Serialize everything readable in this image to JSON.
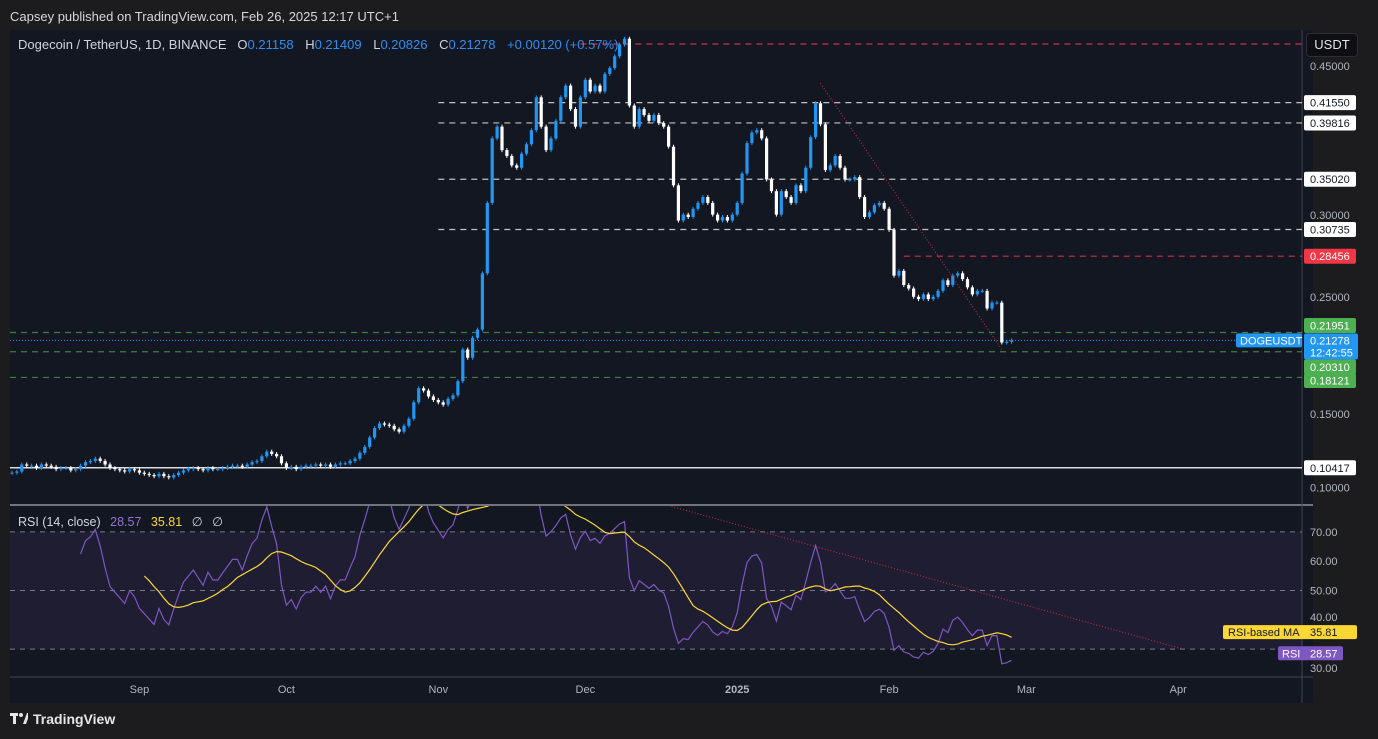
{
  "header": {
    "published": "Capsey published on TradingView.com, Feb 26, 2025 12:17 UTC+1"
  },
  "legend": {
    "symbol": "Dogecoin / TetherUS, 1D, BINANCE",
    "o_label": "O",
    "o": "0.21158",
    "h_label": "H",
    "h": "0.21409",
    "l_label": "L",
    "l": "0.20826",
    "c_label": "C",
    "c": "0.21278",
    "change": "+0.00120 (+0.57%)"
  },
  "currency": "USDT",
  "rsi_legend": {
    "name": "RSI (14, close)",
    "rsi": "28.57",
    "ma": "35.81",
    "v1": "∅",
    "v2": "∅"
  },
  "footer": {
    "logo": "TradingView"
  },
  "colors": {
    "up": "#2196f3",
    "down": "#ffffff",
    "rsi": "#7e57c2",
    "rsi_ma": "#fdd835",
    "resistance": "#f23645",
    "support": "#4caf50",
    "current": "#2196f3"
  },
  "chart_data": [
    {
      "type": "candlestick",
      "symbol": "DOGEUSDT",
      "interval": "1D",
      "start_date": "2024-08-06",
      "end_date": "2025-02-26",
      "closes": [
        0.1,
        0.101,
        0.107,
        0.106,
        0.106,
        0.104,
        0.107,
        0.106,
        0.105,
        0.103,
        0.104,
        0.104,
        0.102,
        0.103,
        0.106,
        0.109,
        0.11,
        0.112,
        0.11,
        0.107,
        0.104,
        0.103,
        0.102,
        0.101,
        0.103,
        0.102,
        0.1,
        0.099,
        0.098,
        0.097,
        0.099,
        0.097,
        0.096,
        0.098,
        0.1,
        0.102,
        0.103,
        0.104,
        0.103,
        0.102,
        0.104,
        0.103,
        0.103,
        0.104,
        0.105,
        0.106,
        0.106,
        0.105,
        0.107,
        0.109,
        0.11,
        0.114,
        0.118,
        0.116,
        0.114,
        0.108,
        0.104,
        0.105,
        0.103,
        0.105,
        0.106,
        0.106,
        0.107,
        0.106,
        0.107,
        0.105,
        0.107,
        0.108,
        0.108,
        0.11,
        0.112,
        0.117,
        0.122,
        0.13,
        0.138,
        0.142,
        0.141,
        0.14,
        0.137,
        0.135,
        0.14,
        0.146,
        0.16,
        0.172,
        0.17,
        0.165,
        0.162,
        0.16,
        0.158,
        0.163,
        0.166,
        0.178,
        0.205,
        0.198,
        0.215,
        0.222,
        0.27,
        0.33,
        0.385,
        0.395,
        0.375,
        0.37,
        0.362,
        0.36,
        0.372,
        0.38,
        0.392,
        0.42,
        0.395,
        0.375,
        0.385,
        0.4,
        0.42,
        0.43,
        0.41,
        0.395,
        0.42,
        0.435,
        0.425,
        0.43,
        0.425,
        0.44,
        0.445,
        0.455,
        0.465,
        0.47,
        0.413,
        0.395,
        0.41,
        0.405,
        0.4,
        0.405,
        0.398,
        0.395,
        0.378,
        0.345,
        0.315,
        0.32,
        0.318,
        0.325,
        0.33,
        0.335,
        0.33,
        0.32,
        0.315,
        0.318,
        0.315,
        0.32,
        0.33,
        0.355,
        0.381,
        0.39,
        0.392,
        0.385,
        0.35,
        0.34,
        0.32,
        0.34,
        0.335,
        0.33,
        0.345,
        0.34,
        0.36,
        0.386,
        0.415,
        0.397,
        0.358,
        0.362,
        0.37,
        0.36,
        0.35,
        0.35,
        0.352,
        0.335,
        0.318,
        0.322,
        0.328,
        0.33,
        0.325,
        0.307,
        0.268,
        0.272,
        0.26,
        0.257,
        0.25,
        0.248,
        0.252,
        0.248,
        0.25,
        0.255,
        0.264,
        0.26,
        0.268,
        0.27,
        0.265,
        0.258,
        0.252,
        0.255,
        0.255,
        0.24,
        0.245,
        0.245,
        0.211,
        0.2116,
        0.21278
      ],
      "y_axis": {
        "scale": "linear",
        "ticks": [
          0.45,
          0.3,
          0.25,
          0.15,
          0.1
        ]
      },
      "x_axis": {
        "ticks": [
          {
            "label": "Sep",
            "date": "2024-09-01",
            "bold": false
          },
          {
            "label": "Oct",
            "date": "2024-10-01",
            "bold": false
          },
          {
            "label": "Nov",
            "date": "2024-11-01",
            "bold": false
          },
          {
            "label": "Dec",
            "date": "2024-12-01",
            "bold": false
          },
          {
            "label": "2025",
            "date": "2025-01-01",
            "bold": true
          },
          {
            "label": "Feb",
            "date": "2025-02-01",
            "bold": false
          },
          {
            "label": "Mar",
            "date": "2025-03-01",
            "bold": false
          },
          {
            "label": "Apr",
            "date": "2025-04-01",
            "bold": false
          }
        ]
      },
      "levels": [
        {
          "price": 0.4655,
          "label": "",
          "style": "dashed",
          "color": "#f23645",
          "from": "2024-11-30"
        },
        {
          "price": 0.4155,
          "label": "0.41550",
          "style": "dashed",
          "color": "#e0e0e0",
          "from": "2024-11-01",
          "tag_bg": "#ffffff",
          "tag_fg": "#131722"
        },
        {
          "price": 0.39816,
          "label": "0.39816",
          "style": "dashed",
          "color": "#e0e0e0",
          "from": "2024-11-01",
          "tag_bg": "#ffffff",
          "tag_fg": "#131722"
        },
        {
          "price": 0.3502,
          "label": "0.35020",
          "style": "dashed",
          "color": "#e0e0e0",
          "from": "2024-11-01",
          "tag_bg": "#ffffff",
          "tag_fg": "#131722"
        },
        {
          "price": 0.30735,
          "label": "0.30735",
          "style": "dashed",
          "color": "#e0e0e0",
          "from": "2024-11-01",
          "tag_bg": "#ffffff",
          "tag_fg": "#131722"
        },
        {
          "price": 0.28456,
          "label": "0.28456",
          "style": "dashed",
          "color": "#f23645",
          "from": "2025-02-04",
          "tag_bg": "#f23645",
          "tag_fg": "#ffffff"
        },
        {
          "price": 0.21951,
          "label": "0.21951",
          "style": "dashed",
          "color": "#4caf50",
          "from": null,
          "tag_bg": "#4caf50",
          "tag_fg": "#ffffff"
        },
        {
          "price": 0.2031,
          "label": "0.20310",
          "style": "dashed",
          "color": "#4caf50",
          "from": null,
          "tag_bg": "#4caf50",
          "tag_fg": "#ffffff"
        },
        {
          "price": 0.18121,
          "label": "0.18121",
          "style": "dashed",
          "color": "#4caf50",
          "from": null,
          "tag_bg": "#4caf50",
          "tag_fg": "#ffffff"
        },
        {
          "price": 0.10417,
          "label": "0.10417",
          "style": "solid",
          "color": "#ffffff",
          "from": null,
          "tag_bg": "#ffffff",
          "tag_fg": "#131722"
        }
      ],
      "current_price": {
        "symbol": "DOGEUSDT",
        "price": "0.21278",
        "countdown": "12:42:55",
        "value": 0.21278
      },
      "trendline": {
        "from": {
          "date": "2025-01-18",
          "price": 0.432
        },
        "to": {
          "date": "2025-02-24",
          "price": 0.205
        },
        "color": "#f23645"
      }
    },
    {
      "type": "line",
      "indicator": "RSI (14, close)",
      "series": [
        {
          "name": "RSI",
          "length": 14,
          "last": 28.57
        },
        {
          "name": "RSI-based MA",
          "length": 14,
          "last": 35.81
        }
      ],
      "y_axis": {
        "ticks": [
          70,
          60,
          50,
          40,
          30
        ],
        "bands": [
          70,
          50,
          30
        ]
      },
      "trendline": {
        "from": {
          "date": "2024-12-18",
          "value": 79
        },
        "to": {
          "date": "2025-04-02",
          "value": 30
        },
        "color": "#f23645"
      }
    }
  ]
}
